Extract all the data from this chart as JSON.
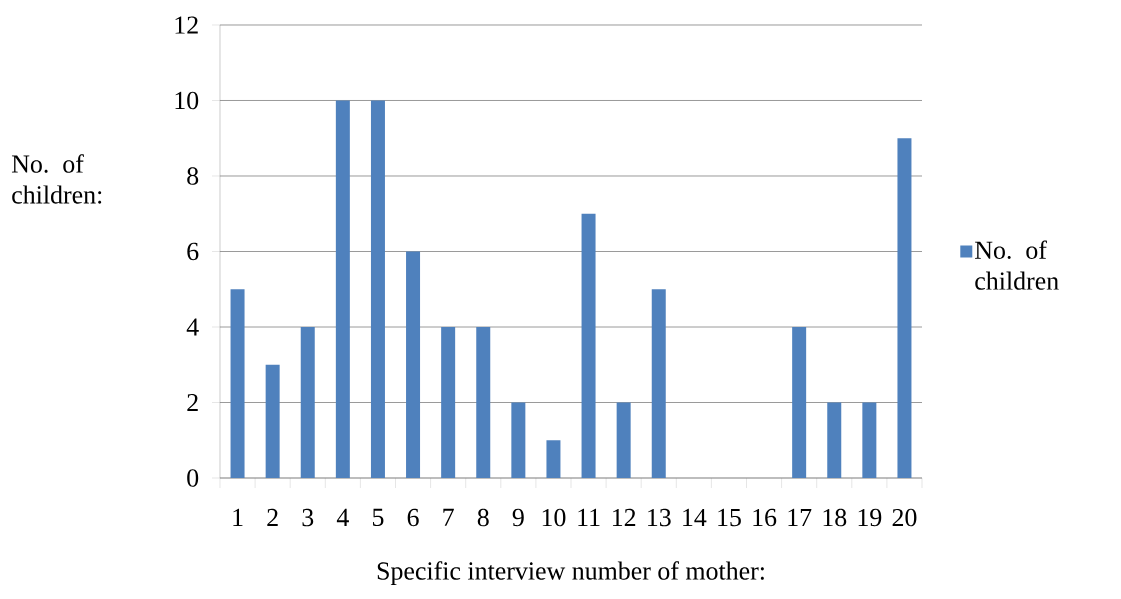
{
  "chart_data": {
    "type": "bar",
    "xlabel": "Specific interview number of mother:",
    "ylabel": "No. of children:",
    "categories": [
      "1",
      "2",
      "3",
      "4",
      "5",
      "6",
      "7",
      "8",
      "9",
      "10",
      "11",
      "12",
      "13",
      "14",
      "15",
      "16",
      "17",
      "18",
      "19",
      "20"
    ],
    "series": [
      {
        "name": "No. of children",
        "color": "#4f81bd",
        "values": [
          5,
          3,
          4,
          10,
          10,
          6,
          4,
          4,
          2,
          1,
          7,
          2,
          5,
          0,
          0,
          0,
          4,
          2,
          2,
          9
        ]
      }
    ],
    "ylim": [
      0,
      12
    ],
    "yticks": [
      0,
      2,
      4,
      6,
      8,
      10,
      12
    ],
    "grid": "y",
    "legend": "right"
  }
}
